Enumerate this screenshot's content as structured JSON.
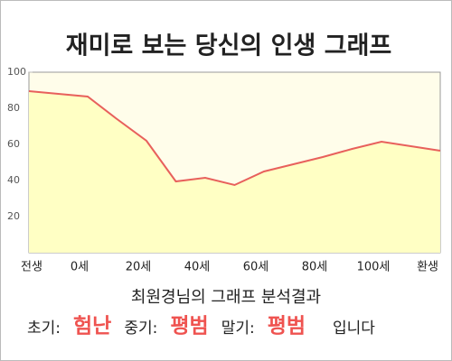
{
  "chart_data": {
    "type": "area",
    "title": "재미로 보는 당신의 인생 그래프",
    "categories": [
      "전생",
      null,
      "0세",
      null,
      "20세",
      null,
      "40세",
      null,
      "60세",
      null,
      "80세",
      null,
      "100세",
      null,
      "환생"
    ],
    "values": [
      89.5,
      88,
      86.5,
      74,
      62,
      39.5,
      41.5,
      37.5,
      45,
      49,
      53,
      57.5,
      61.5,
      59,
      56.5
    ],
    "color": "#e8605c",
    "fill": "#ffffc4",
    "ylim": [
      0,
      100
    ],
    "yticks": [
      20,
      40,
      60,
      80,
      100
    ],
    "grid": false
  },
  "result": {
    "heading": "최원경님의 그래프 분석결과",
    "items": [
      {
        "label": "초기:",
        "value": "험난"
      },
      {
        "label": "중기:",
        "value": "평범"
      },
      {
        "label": "말기:",
        "value": "평범"
      }
    ],
    "ending": "입니다"
  }
}
